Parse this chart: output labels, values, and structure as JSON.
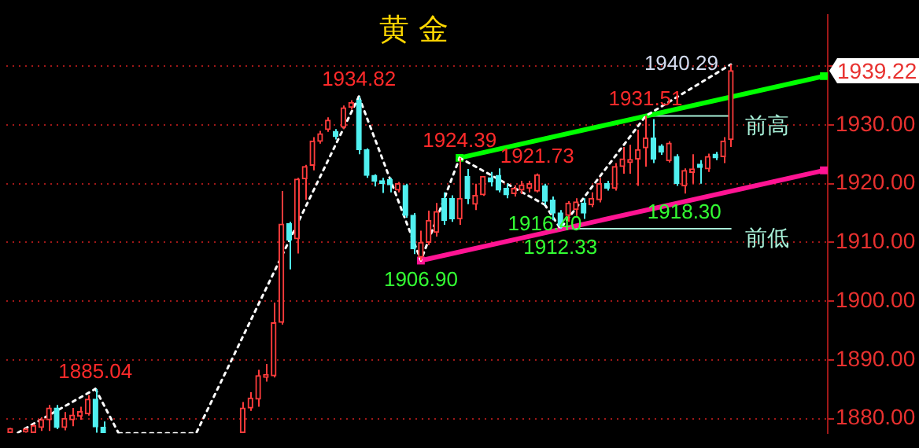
{
  "chart_data": {
    "type": "candlestick",
    "title": "黄 金",
    "categories": [
      null,
      null,
      null,
      null,
      null,
      null,
      null,
      null,
      null,
      null,
      null,
      null,
      null,
      null,
      null,
      null,
      null,
      null,
      null,
      null,
      null,
      null,
      null,
      null,
      null,
      null,
      null,
      null,
      null,
      null,
      null,
      null,
      null,
      null,
      null,
      null,
      null,
      null,
      null,
      null,
      null,
      null,
      null,
      null,
      null,
      null,
      null,
      null,
      null,
      null,
      null,
      null,
      null,
      null,
      null,
      null,
      null,
      null,
      null,
      null,
      null,
      null,
      null,
      null,
      null,
      null,
      null,
      null,
      null,
      null,
      null,
      null,
      null,
      null,
      null,
      null,
      null,
      null,
      null,
      null,
      null,
      null,
      null,
      null,
      null,
      null,
      null,
      null,
      null,
      null,
      null,
      null,
      null,
      null,
      null,
      null,
      null,
      null,
      null,
      null,
      null,
      null,
      null,
      null,
      null,
      null
    ],
    "ohlc": [
      [
        1877.6,
        1878.4,
        1877.6,
        1878.3
      ],
      null,
      [
        1877.7,
        1878.4,
        1877.6,
        1878.2
      ],
      [
        1877.6,
        1879.0,
        1877.6,
        1878.8
      ],
      [
        1878.5,
        1880.2,
        1877.9,
        1879.8
      ],
      [
        1879.8,
        1882.3,
        1877.9,
        1881.8
      ],
      [
        1881.8,
        1882.3,
        1878.2,
        1878.5
      ],
      [
        1878.5,
        1881.1,
        1878.0,
        1880.0
      ],
      [
        1879.8,
        1881.8,
        1878.7,
        1880.6
      ],
      [
        1880.4,
        1882.0,
        1879.8,
        1881.2
      ],
      [
        1880.8,
        1884.0,
        1880.5,
        1883.3
      ],
      [
        1883.3,
        1885.04,
        1877.6,
        1878.6
      ],
      [
        1878.5,
        1879.5,
        1877.6,
        1877.6
      ],
      null,
      null,
      null,
      null,
      null,
      null,
      null,
      null,
      null,
      null,
      null,
      null,
      null,
      null,
      null,
      null,
      null,
      [
        1877.6,
        1882.8,
        1877.6,
        1881.8
      ],
      [
        1881.8,
        1884.5,
        1881.3,
        1883.5
      ],
      [
        1883.3,
        1888.3,
        1882.0,
        1887.3
      ],
      [
        1887.0,
        1889.3,
        1886.3,
        1887.5
      ],
      [
        1887.3,
        1899.75,
        1887.0,
        1896.3
      ],
      [
        1896.4,
        1918.75,
        1896.0,
        1913.1
      ],
      [
        1913.2,
        1913.5,
        1905.4,
        1910.4
      ],
      [
        1910.6,
        1921.0,
        1908.1,
        1920.75
      ],
      [
        1920.8,
        1923.2,
        1917.25,
        1922.9
      ],
      [
        1923.1,
        1927.9,
        1922.25,
        1927.25
      ],
      [
        1927.2,
        1929.0,
        1926.8,
        1928.5
      ],
      [
        1929.2,
        1931.3,
        1928.8,
        1930.8
      ],
      [
        1928.9,
        1929.3,
        1927.5,
        1928.0
      ],
      [
        1929.6,
        1933.3,
        1929.3,
        1932.9
      ],
      [
        1933.0,
        1934.2,
        1932.6,
        1933.8
      ],
      [
        1934.2,
        1934.82,
        1925.0,
        1925.8
      ],
      [
        1925.8,
        1926.0,
        1921.0,
        1921.4
      ],
      [
        1921.4,
        1921.6,
        1919.5,
        1920.4
      ],
      [
        1920.5,
        1921.0,
        1918.4,
        1920.0
      ],
      [
        1920.7,
        1921.0,
        1918.5,
        1919.8
      ],
      [
        1918.9,
        1920.3,
        1918.5,
        1920.0
      ],
      [
        1919.7,
        1920.0,
        1914.2,
        1914.6
      ],
      [
        1914.6,
        1915.0,
        1908.0,
        1908.9
      ],
      [
        1907.5,
        1912.0,
        1906.9,
        1910.0
      ],
      [
        1910.0,
        1915.4,
        1909.5,
        1913.75
      ],
      [
        1911.7,
        1916.7,
        1911.0,
        1915.25
      ],
      [
        1917.5,
        1918.5,
        1913.0,
        1913.75
      ],
      [
        1917.5,
        1918.0,
        1913.5,
        1914.0
      ],
      [
        1914.0,
        1924.39,
        1913.0,
        1917.5
      ],
      [
        1921.25,
        1922.5,
        1916.5,
        1917.5
      ],
      [
        1916.5,
        1920.0,
        1915.5,
        1918.0
      ],
      [
        1918.1,
        1921.3,
        1917.9,
        1921.25
      ],
      [
        1921.0,
        1922.0,
        1919.5,
        1920.3
      ],
      [
        1921.4,
        1922.6,
        1918.5,
        1918.9
      ],
      [
        1919.2,
        1920.0,
        1917.5,
        1918.1
      ],
      [
        1918.3,
        1919.7,
        1917.8,
        1919.2
      ],
      [
        1918.9,
        1920.5,
        1918.2,
        1919.75
      ],
      [
        1919.2,
        1920.5,
        1918.5,
        1920.0
      ],
      [
        1918.75,
        1921.73,
        1918.5,
        1921.5
      ],
      [
        1919.6,
        1920.0,
        1916.4,
        1917.0
      ],
      [
        1917.2,
        1917.8,
        1913.75,
        1915.0
      ],
      [
        1915.0,
        1915.5,
        1912.33,
        1912.9
      ],
      [
        1914.6,
        1917.0,
        1913.5,
        1916.7
      ],
      [
        1915.6,
        1917.5,
        1914.5,
        1916.9
      ],
      [
        1916.7,
        1917.5,
        1914.0,
        1915.0
      ],
      [
        1916.4,
        1918.5,
        1916.0,
        1917.5
      ],
      [
        1917.25,
        1921.0,
        1916.8,
        1920.0
      ],
      [
        1920.0,
        1920.5,
        1918.8,
        1919.2
      ],
      [
        1919.2,
        1923.5,
        1918.8,
        1922.9
      ],
      [
        1922.9,
        1926.25,
        1921.7,
        1924.2
      ],
      [
        1923.6,
        1926.6,
        1921.7,
        1924.1
      ],
      [
        1924.2,
        1929.2,
        1919.6,
        1925.8
      ],
      [
        1926.1,
        1931.51,
        1922.9,
        1927.75
      ],
      [
        1927.75,
        1931.0,
        1923.5,
        1924.2
      ],
      [
        1926.4,
        1926.7,
        1924.9,
        1925.4
      ],
      [
        1923.9,
        1927.2,
        1923.6,
        1926.9
      ],
      [
        1924.6,
        1925.0,
        1919.6,
        1920.0
      ],
      [
        1919.6,
        1922.6,
        1918.3,
        1922.25
      ],
      [
        1921.9,
        1925.0,
        1920.0,
        1922.5
      ],
      [
        1923.3,
        1924.0,
        1920.0,
        1922.75
      ],
      [
        1922.5,
        1925.1,
        1922.0,
        1924.6
      ],
      [
        1925.0,
        1925.4,
        1924.0,
        1924.4
      ],
      [
        1924.6,
        1927.9,
        1923.5,
        1927.25
      ],
      [
        1927.5,
        1940.29,
        1926.25,
        1939.22
      ],
      null,
      null,
      null,
      null,
      null,
      null,
      null,
      null,
      null,
      null,
      null,
      null
    ],
    "colors": [
      "#ff3c3c",
      null,
      "#ff3c3c",
      "#ff3c3c",
      "#ff3c3c",
      "#ff3c3c",
      "#50f0f0",
      "#ff3c3c",
      "#ff3c3c",
      "#ff3c3c",
      "#ff3c3c",
      "#50f0f0",
      "#50f0f0",
      null,
      null,
      null,
      null,
      null,
      null,
      null,
      null,
      null,
      null,
      null,
      null,
      null,
      null,
      null,
      null,
      null,
      "#ff3c3c",
      "#ff3c3c",
      "#ff3c3c",
      "#ff3c3c",
      "#ff3c3c",
      "#ff3c3c",
      "#50f0f0",
      "#ff3c3c",
      "#ff3c3c",
      "#ff3c3c",
      "#ff3c3c",
      "#ff3c3c",
      "#50f0f0",
      "#ff3c3c",
      "#ff3c3c",
      "#50f0f0",
      "#50f0f0",
      "#50f0f0",
      "#50f0f0",
      "#50f0f0",
      "#ff3c3c",
      "#50f0f0",
      "#50f0f0",
      "#ff3c3c",
      "#ff3c3c",
      "#ff3c3c",
      "#50f0f0",
      "#50f0f0",
      "#ff3c3c",
      "#50f0f0",
      "#ff3c3c",
      "#ff3c3c",
      "#50f0f0",
      "#50f0f0",
      "#50f0f0",
      "#ff3c3c",
      "#ff3c3c",
      "#ff3c3c",
      "#ff3c3c",
      "#50f0f0",
      "#50f0f0",
      "#50f0f0",
      "#ff3c3c",
      "#ff3c3c",
      "#50f0f0",
      "#ff3c3c",
      "#ff3c3c",
      "#50f0f0",
      "#ff3c3c",
      "#ff3c3c",
      "#ff3c3c",
      "#ff3c3c",
      "#ff3c3c",
      "#50f0f0",
      "#50f0f0",
      "#ff3c3c",
      "#50f0f0",
      "#ff3c3c",
      "#ff3c3c",
      "#50f0f0",
      "#ff3c3c",
      "#50f0f0",
      "#ff3c3c",
      "#ff3c3c",
      null,
      null,
      null,
      null,
      null,
      null,
      null,
      null,
      null,
      null,
      null,
      null
    ],
    "series": [
      {
        "type": "line",
        "color": "#ffffff",
        "line_style": "dotted",
        "values": [
          null,
          1877.6,
          null,
          null,
          null,
          null,
          null,
          null,
          null,
          null,
          null,
          1885.04,
          null,
          null,
          1877.5,
          null,
          null,
          null,
          null,
          null,
          null,
          null,
          null,
          null,
          1877.5,
          null,
          null,
          null,
          null,
          null,
          null,
          null,
          null,
          null,
          null,
          null,
          null,
          null,
          null,
          null,
          null,
          null,
          null,
          null,
          null,
          1934.82,
          null,
          null,
          null,
          null,
          null,
          null,
          null,
          1906.9,
          null,
          null,
          null,
          null,
          1924.39,
          null,
          null,
          null,
          null,
          null,
          null,
          null,
          null,
          null,
          null,
          1916.4,
          null,
          1912.33,
          null,
          null,
          null,
          null,
          null,
          null,
          null,
          null,
          null,
          null,
          1931.51,
          null,
          null,
          null,
          null,
          null,
          null,
          null,
          null,
          null,
          null,
          1940.29,
          null,
          null,
          null,
          null,
          null,
          null,
          null,
          null,
          null,
          null,
          null,
          null
        ],
        "colors": [
          null,
          "#ffffff",
          null,
          null,
          null,
          null,
          null,
          null,
          null,
          null,
          null,
          "#ffff00",
          null,
          null,
          "#ffff00",
          null,
          null,
          null,
          null,
          null,
          null,
          null,
          null,
          null,
          "#ffffff",
          null,
          null,
          null,
          null,
          null,
          null,
          null,
          null,
          null,
          null,
          null,
          null,
          null,
          null,
          null,
          null,
          null,
          null,
          null,
          null,
          "#ffff00",
          null,
          null,
          null,
          null,
          null,
          null,
          null,
          "#ffffff",
          null,
          null,
          null,
          null,
          "#ffff00",
          null,
          null,
          null,
          null,
          null,
          null,
          null,
          null,
          null,
          null,
          "#ffff00",
          null,
          "#ffffff",
          null,
          null,
          null,
          null,
          null,
          null,
          null,
          null,
          null,
          null,
          "#ffffff",
          null,
          null,
          null,
          null,
          null,
          null,
          null,
          null,
          null,
          null,
          null,
          null,
          null,
          null,
          null,
          null,
          null,
          null,
          null,
          null,
          null,
          null,
          null
        ],
        "value_labels": [
          null,
          null,
          null,
          null,
          null,
          null,
          null,
          null,
          null,
          null,
          null,
          null,
          null,
          null,
          null,
          null,
          null,
          null,
          null,
          null,
          null,
          null,
          null,
          null,
          null,
          null,
          null,
          null,
          null,
          null,
          null,
          null,
          null,
          null,
          null,
          null,
          null,
          null,
          null,
          null,
          null,
          null,
          null,
          null,
          null,
          null,
          null,
          null,
          null,
          null,
          null,
          null,
          null,
          null,
          null,
          null,
          null,
          null,
          null,
          null,
          null,
          null,
          null,
          null,
          null,
          null,
          null,
          null,
          null,
          null,
          null,
          null,
          null,
          null,
          null,
          null,
          null,
          null,
          null,
          null,
          null,
          null,
          null,
          null,
          null,
          null,
          null,
          null,
          null,
          null,
          null,
          null,
          null,
          "1940.29",
          null,
          null,
          null,
          null,
          null,
          null,
          null,
          null,
          null,
          null,
          null,
          null
        ]
      },
      {
        "type": "line",
        "color": "#00ff00",
        "marker": "square",
        "values": [
          null,
          null,
          null,
          null,
          null,
          null,
          null,
          null,
          null,
          null,
          null,
          null,
          null,
          null,
          null,
          null,
          null,
          null,
          null,
          null,
          null,
          null,
          null,
          null,
          null,
          null,
          null,
          null,
          null,
          null,
          null,
          null,
          null,
          null,
          null,
          null,
          null,
          null,
          null,
          null,
          null,
          null,
          null,
          null,
          null,
          null,
          null,
          null,
          null,
          null,
          null,
          null,
          null,
          null,
          null,
          null,
          null,
          null,
          1924.39,
          null,
          null,
          null,
          null,
          null,
          null,
          null,
          null,
          null,
          null,
          null,
          null,
          null,
          null,
          null,
          null,
          null,
          null,
          null,
          null,
          null,
          null,
          null,
          null,
          null,
          null,
          null,
          null,
          null,
          null,
          null,
          null,
          null,
          null,
          null,
          null,
          null,
          null,
          null,
          null,
          null,
          null,
          null,
          null,
          null,
          null,
          1938.3
        ]
      },
      {
        "type": "line",
        "color": "#ff1493",
        "marker": "square",
        "values": [
          null,
          null,
          null,
          null,
          null,
          null,
          null,
          null,
          null,
          null,
          null,
          null,
          null,
          null,
          null,
          null,
          null,
          null,
          null,
          null,
          null,
          null,
          null,
          null,
          null,
          null,
          null,
          null,
          null,
          null,
          null,
          null,
          null,
          null,
          null,
          null,
          null,
          null,
          null,
          null,
          null,
          null,
          null,
          null,
          null,
          null,
          null,
          null,
          null,
          null,
          null,
          null,
          null,
          1906.9,
          null,
          null,
          null,
          null,
          null,
          null,
          null,
          null,
          null,
          null,
          null,
          null,
          null,
          null,
          null,
          null,
          null,
          null,
          null,
          null,
          null,
          null,
          null,
          null,
          null,
          null,
          null,
          null,
          null,
          null,
          null,
          null,
          null,
          null,
          null,
          null,
          null,
          null,
          null,
          null,
          null,
          null,
          null,
          null,
          null,
          null,
          null,
          null,
          null,
          null,
          null,
          1922.25
        ]
      },
      {
        "type": "line",
        "name": "前高",
        "color": "#a8f0d8",
        "values": [
          null,
          null,
          null,
          null,
          null,
          null,
          null,
          null,
          null,
          null,
          null,
          null,
          null,
          null,
          null,
          null,
          null,
          null,
          null,
          null,
          null,
          null,
          null,
          null,
          null,
          null,
          null,
          null,
          null,
          null,
          null,
          null,
          null,
          null,
          null,
          null,
          null,
          null,
          null,
          null,
          null,
          null,
          null,
          null,
          null,
          null,
          null,
          null,
          null,
          null,
          null,
          null,
          null,
          null,
          null,
          null,
          null,
          null,
          null,
          null,
          null,
          null,
          null,
          null,
          null,
          null,
          null,
          null,
          null,
          null,
          null,
          null,
          null,
          null,
          null,
          null,
          null,
          null,
          null,
          null,
          null,
          null,
          1931.51,
          null,
          null,
          null,
          null,
          null,
          null,
          null,
          null,
          null,
          null,
          1931.51,
          null,
          null,
          null,
          null,
          null,
          null,
          null,
          null,
          null,
          null,
          null,
          null
        ]
      },
      {
        "type": "line",
        "name": "前低",
        "color": "#a8f0d8",
        "values": [
          null,
          null,
          null,
          null,
          null,
          null,
          null,
          null,
          null,
          null,
          null,
          null,
          null,
          null,
          null,
          null,
          null,
          null,
          null,
          null,
          null,
          null,
          null,
          null,
          null,
          null,
          null,
          null,
          null,
          null,
          null,
          null,
          null,
          null,
          null,
          null,
          null,
          null,
          null,
          null,
          null,
          null,
          null,
          null,
          null,
          null,
          null,
          null,
          null,
          null,
          null,
          null,
          null,
          null,
          null,
          null,
          null,
          null,
          null,
          null,
          null,
          null,
          null,
          null,
          null,
          null,
          null,
          null,
          null,
          null,
          null,
          1912.33,
          null,
          null,
          null,
          null,
          null,
          null,
          null,
          null,
          null,
          null,
          null,
          null,
          null,
          null,
          null,
          null,
          null,
          null,
          null,
          null,
          null,
          1912.33,
          null,
          null,
          null,
          null,
          null,
          null,
          null,
          null,
          null,
          null,
          null,
          null
        ]
      }
    ],
    "annotations": [
      {
        "text": "1885.04",
        "y": 1885.04
      },
      {
        "text": "1934.82",
        "y": 1934.82
      },
      {
        "text": "1906.90",
        "y": 1906.9
      },
      {
        "text": "1924.39",
        "y": 1924.39
      },
      {
        "text": "1921.73",
        "y": 1921.73
      },
      {
        "text": "1912.33",
        "y": 1912.33
      },
      {
        "text": "1916.40",
        "y": 1916.4
      },
      {
        "text": "1931.51",
        "y": 1931.51
      },
      {
        "text": "1918.30",
        "y": 1918.3
      },
      "1939.22"
    ],
    "ylim": [
      1877.5,
      1948.75
    ],
    "yticks": [
      {
        "value": 1880,
        "label": "1880.00"
      },
      {
        "value": 1890,
        "label": "1890.00"
      },
      {
        "value": 1900,
        "label": "1900.00"
      },
      {
        "value": 1910,
        "label": "1910.00"
      },
      {
        "value": 1920,
        "label": "1920.00"
      },
      {
        "value": 1930,
        "label": "1930.00"
      },
      {
        "value": 1940,
        "label": null
      }
    ],
    "grid": "y",
    "tick_labels": "y"
  }
}
